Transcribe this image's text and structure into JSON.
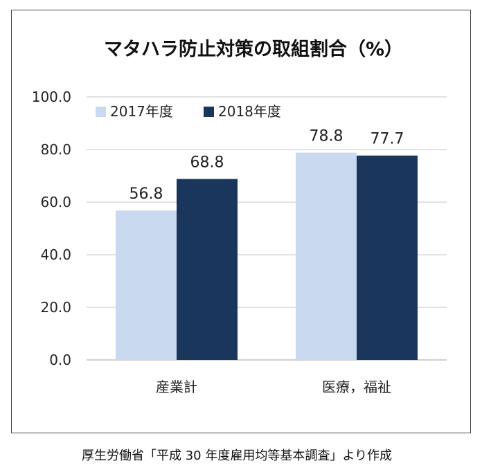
{
  "chart_data": {
    "type": "bar",
    "title": "マタハラ防止対策の取組割合（%）",
    "categories": [
      "産業計",
      "医療，福祉"
    ],
    "series": [
      {
        "name": "2017年度",
        "values": [
          56.8,
          78.8
        ],
        "color": "#c9daf0"
      },
      {
        "name": "2018年度",
        "values": [
          68.8,
          77.7
        ],
        "color": "#1b365d"
      }
    ],
    "data_labels": [
      [
        "56.8",
        "78.8"
      ],
      [
        "68.8",
        "77.7"
      ]
    ],
    "ylim": [
      0,
      100
    ],
    "yticks": [
      "0.0",
      "20.0",
      "40.0",
      "60.0",
      "80.0",
      "100.0"
    ],
    "grid": true,
    "legend_position": "top-left"
  },
  "source_note": "厚生労働省「平成 30 年度雇用均等基本調査」より作成"
}
